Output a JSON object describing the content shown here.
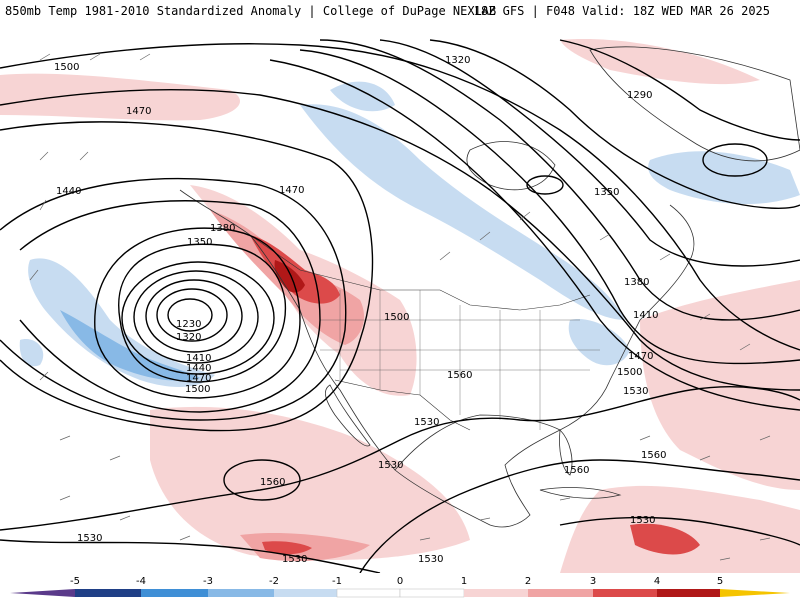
{
  "header": {
    "title_left": "850mb Temp 1981-2010 Standardized Anomaly | College of DuPage NEXLAB",
    "title_right": "18Z GFS | F048 Valid: 18Z WED MAR 26 2025"
  },
  "colors": {
    "neg5": "#5a3a8a",
    "neg4": "#1f3f86",
    "neg3": "#3f8fd6",
    "neg2": "#88b9e6",
    "neg1": "#c7dcf1",
    "zero": "#ffffff",
    "pos1": "#f7d4d4",
    "pos2": "#f0a4a4",
    "pos3": "#dc4a4a",
    "pos4": "#b01818",
    "pos5": "#6b0a0a",
    "cap": "#f5c400"
  },
  "colorbar": {
    "ticks": [
      "-5",
      "-4",
      "-3",
      "-2",
      "-1",
      "0",
      "1",
      "2",
      "3",
      "4",
      "5"
    ]
  },
  "contour_labels": [
    {
      "id": "c1500-nw",
      "text": "1500"
    },
    {
      "id": "c1470-nw",
      "text": "1470"
    },
    {
      "id": "c1440-w",
      "text": "1440"
    },
    {
      "id": "c1470-c",
      "text": "1470"
    },
    {
      "id": "c1380-low",
      "text": "1380"
    },
    {
      "id": "c1350-low",
      "text": "1350"
    },
    {
      "id": "c1230",
      "text": "1230"
    },
    {
      "id": "c1320-low",
      "text": "1320"
    },
    {
      "id": "c1410-low",
      "text": "1410"
    },
    {
      "id": "c1440-low",
      "text": "1440"
    },
    {
      "id": "c1470-low",
      "text": "1470"
    },
    {
      "id": "c1500-low",
      "text": "1500"
    },
    {
      "id": "c1500-ut",
      "text": "1500"
    },
    {
      "id": "c1320-n",
      "text": "1320"
    },
    {
      "id": "c1290-gr",
      "text": "1290"
    },
    {
      "id": "c1350-ne",
      "text": "1350"
    },
    {
      "id": "c1380-e",
      "text": "1380"
    },
    {
      "id": "c1410-e",
      "text": "1410"
    },
    {
      "id": "c1470-e",
      "text": "1470"
    },
    {
      "id": "c1500-e",
      "text": "1500"
    },
    {
      "id": "c1530-e",
      "text": "1530"
    },
    {
      "id": "c1560-c",
      "text": "1560"
    },
    {
      "id": "c1530-tx",
      "text": "1530"
    },
    {
      "id": "c1530-mx",
      "text": "1530"
    },
    {
      "id": "c1560-gulf",
      "text": "1560"
    },
    {
      "id": "c1560-atl",
      "text": "1560"
    },
    {
      "id": "c1560-pac",
      "text": "1560"
    },
    {
      "id": "c1530-sw",
      "text": "1530"
    },
    {
      "id": "c1530-s",
      "text": "1530"
    },
    {
      "id": "c1530-cm",
      "text": "1530"
    },
    {
      "id": "c1530-car",
      "text": "1530"
    }
  ]
}
